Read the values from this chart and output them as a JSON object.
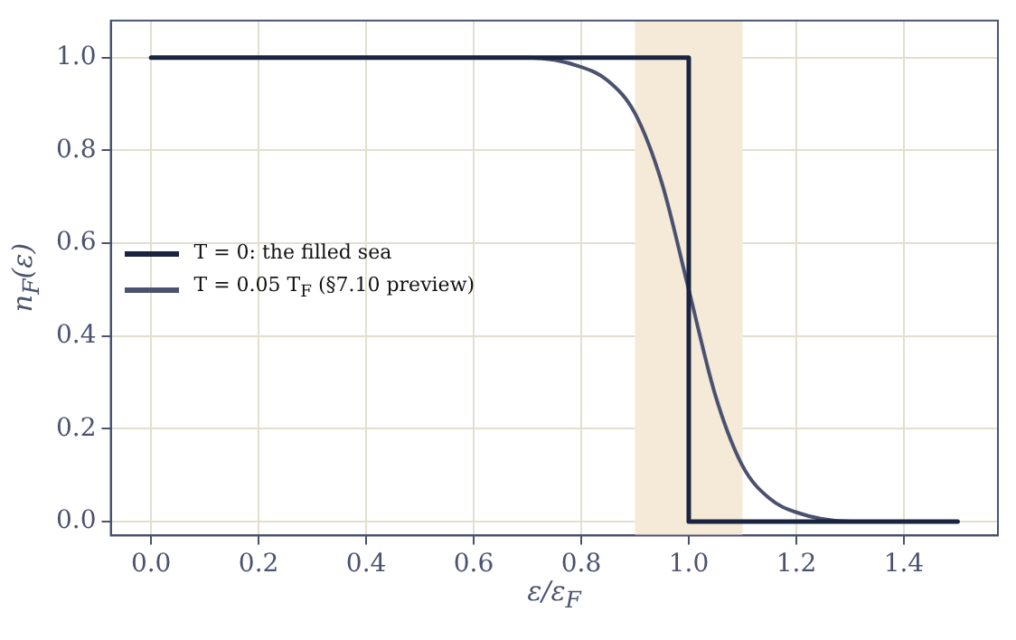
{
  "chart_data": {
    "type": "line",
    "xlabel": "ε/ε$_{F}$",
    "ylabel": "n$_{F}$(ε)",
    "xlim": [
      -0.075,
      1.575
    ],
    "xticks": [
      {
        "value": 0,
        "label": "0.0"
      },
      {
        "value": 0.2,
        "label": "0.2"
      },
      {
        "value": 0.4,
        "label": "0.4"
      },
      {
        "value": 0.6,
        "label": "0.6"
      },
      {
        "value": 0.8,
        "label": "0.8"
      },
      {
        "value": 1,
        "label": "1.0"
      },
      {
        "value": 1.2,
        "label": "1.2"
      },
      {
        "value": 1.4,
        "label": "1.4"
      }
    ],
    "ylim": [
      -0.03,
      1.08
    ],
    "yticks": [
      {
        "value": 0,
        "label": "0.0"
      },
      {
        "value": 0.2,
        "label": "0.2"
      },
      {
        "value": 0.4,
        "label": "0.4"
      },
      {
        "value": 0.6,
        "label": "0.6"
      },
      {
        "value": 0.8,
        "label": "0.8"
      },
      {
        "value": 1,
        "label": "1.0"
      }
    ],
    "grid": true,
    "legend": "left",
    "line_style": "solid",
    "marker": "none",
    "bands": [
      {
        "axis": "x",
        "from": 0.9,
        "to": 1.1,
        "color": "#f5ead8"
      }
    ],
    "series": [
      {
        "name": "T = 0: the filled sea",
        "color": "#1a2340",
        "x": [
          0,
          1,
          1,
          1.5
        ],
        "values": [
          1,
          1,
          0,
          0
        ]
      },
      {
        "name": "T = 0.05 T$_{F}$ (§7.10 preview)",
        "color": "#4a5270",
        "x": [
          0,
          0.5,
          0.7,
          0.8,
          0.85,
          0.9,
          0.95,
          1.0,
          1.05,
          1.1,
          1.15,
          1.2,
          1.3,
          1.5
        ],
        "values": [
          1,
          1,
          1,
          0.98,
          0.95,
          0.88,
          0.73,
          0.5,
          0.27,
          0.12,
          0.05,
          0.02,
          0,
          0
        ]
      }
    ]
  }
}
